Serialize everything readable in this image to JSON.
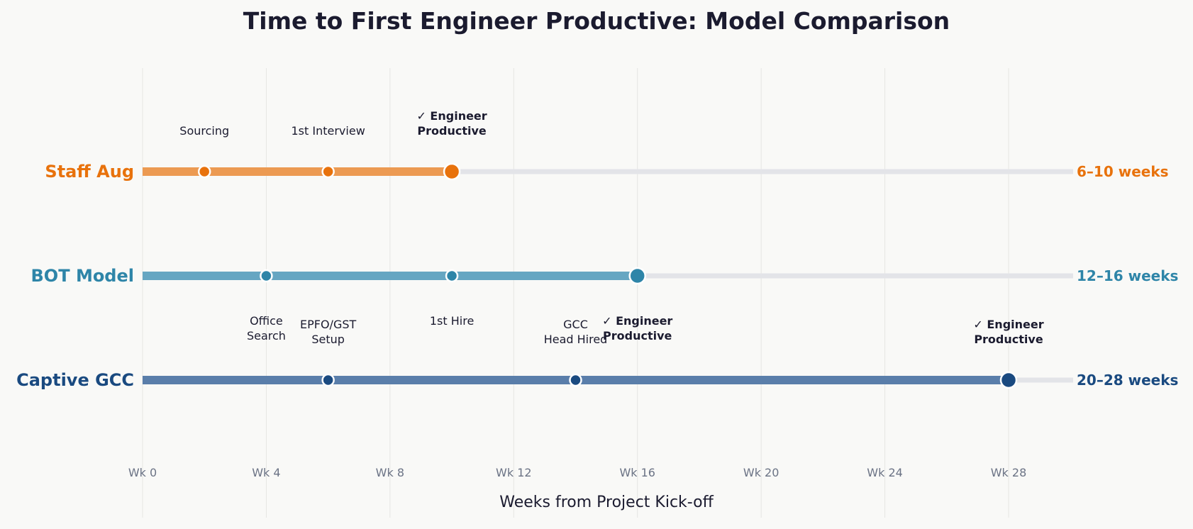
{
  "chart_data": {
    "type": "timeline",
    "title": "Time to First Engineer Productive: Model Comparison",
    "xlabel": "Weeks from Project Kick-off",
    "xlim": [
      0,
      30
    ],
    "xticks": [
      0,
      4,
      8,
      12,
      16,
      20,
      24,
      28
    ],
    "xtick_labels": [
      "Wk 0",
      "Wk 4",
      "Wk 8",
      "Wk 12",
      "Wk 16",
      "Wk 20",
      "Wk 24",
      "Wk 28"
    ],
    "grid": true,
    "series": [
      {
        "name": "Staff Aug",
        "color": "#e8720c",
        "bar_color": "#ec9a52",
        "end": 10,
        "duration_label": "6–10 weeks",
        "label_position": "above",
        "milestones": [
          {
            "x": 2,
            "label": "Sourcing",
            "final": false
          },
          {
            "x": 6,
            "label": "1st Interview",
            "final": false
          },
          {
            "x": 10,
            "label": "✓ Engineer\nProductive",
            "final": true
          }
        ]
      },
      {
        "name": "BOT Model",
        "color": "#2e85a8",
        "bar_color": "#66a6c2",
        "end": 16,
        "duration_label": "12–16 weeks",
        "label_position": "below",
        "milestones": [
          {
            "x": 4,
            "label": "Office\nSearch",
            "final": false
          },
          {
            "x": 10,
            "label": "1st Hire",
            "final": false
          },
          {
            "x": 16,
            "label": "✓ Engineer\nProductive",
            "final": true
          }
        ]
      },
      {
        "name": "Captive GCC",
        "color": "#1a4a80",
        "bar_color": "#5a7eaa",
        "end": 28,
        "duration_label": "20–28 weeks",
        "label_position": "above",
        "milestones": [
          {
            "x": 6,
            "label": "EPFO/GST\nSetup",
            "final": false
          },
          {
            "x": 14,
            "label": "GCC\nHead Hired",
            "final": false
          },
          {
            "x": 28,
            "label": "✓ Engineer\nProductive",
            "final": true
          }
        ]
      }
    ]
  }
}
